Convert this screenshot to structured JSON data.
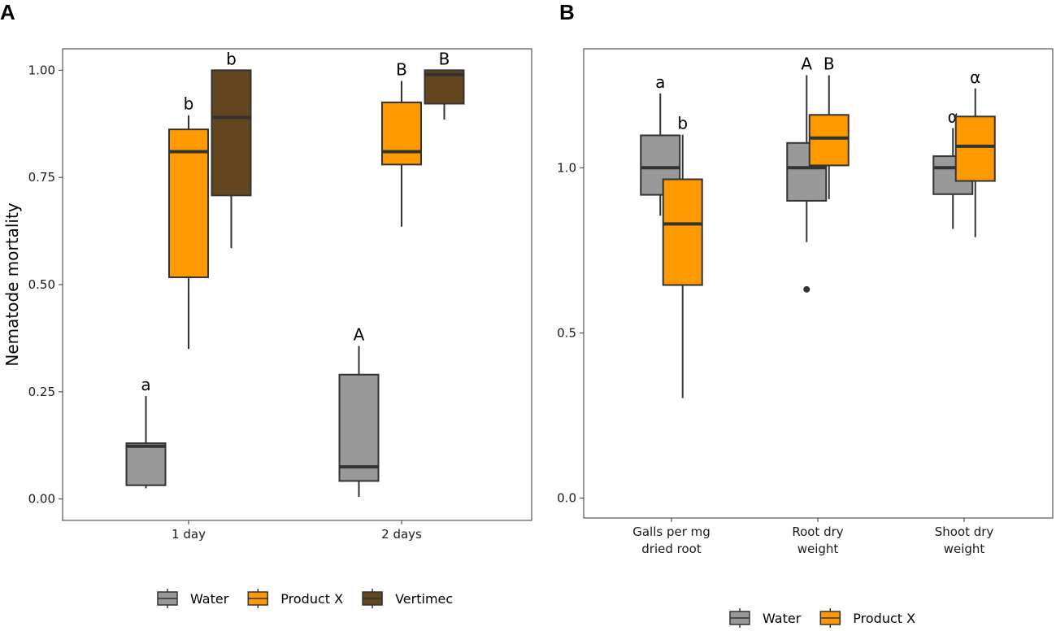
{
  "chart_data": [
    {
      "panel": "A",
      "type": "box",
      "ylabel": "Nematode mortality",
      "xlabel": "",
      "ylim": [
        -0.05,
        1.05
      ],
      "yticks": [
        0.0,
        0.25,
        0.5,
        0.75,
        1.0
      ],
      "ytick_labels": [
        "0.00",
        "0.25",
        "0.50",
        "0.75",
        "1.00"
      ],
      "categories": [
        "1 day",
        "2 days"
      ],
      "series": [
        {
          "name": "Water",
          "color": "#999999",
          "boxes": [
            {
              "min": 0.025,
              "q1": 0.032,
              "median": 0.123,
              "q3": 0.13,
              "max": 0.24,
              "letter": "a"
            },
            {
              "min": 0.005,
              "q1": 0.042,
              "median": 0.075,
              "q3": 0.29,
              "max": 0.357,
              "letter": "A"
            }
          ]
        },
        {
          "name": "Product X",
          "color": "#FF9900",
          "boxes": [
            {
              "min": 0.35,
              "q1": 0.517,
              "median": 0.81,
              "q3": 0.862,
              "max": 0.895,
              "letter": "b"
            },
            {
              "min": 0.635,
              "q1": 0.78,
              "median": 0.81,
              "q3": 0.925,
              "max": 0.975,
              "letter": "B"
            }
          ]
        },
        {
          "name": "Vertimec",
          "color": "#634520",
          "boxes": [
            {
              "min": 0.585,
              "q1": 0.708,
              "median": 0.89,
              "q3": 1.0,
              "max": 1.0,
              "letter": "b"
            },
            {
              "min": 0.885,
              "q1": 0.922,
              "median": 0.99,
              "q3": 1.0,
              "max": 1.0,
              "letter": "B"
            }
          ]
        }
      ]
    },
    {
      "panel": "B",
      "type": "box",
      "ylabel": "",
      "xlabel": "",
      "ylim": [
        -0.06,
        1.36
      ],
      "yticks": [
        0.0,
        0.5,
        1.0
      ],
      "ytick_labels": [
        "0.0",
        "0.5",
        "1.0"
      ],
      "categories": [
        [
          "Galls per mg",
          "dried root"
        ],
        [
          "Root dry",
          "weight"
        ],
        [
          "Shoot dry",
          "weight"
        ]
      ],
      "series": [
        {
          "name": "Water",
          "color": "#999999",
          "boxes": [
            {
              "min": 0.855,
              "q1": 0.918,
              "median": 1.0,
              "q3": 1.098,
              "max": 1.225,
              "letter": "a"
            },
            {
              "min": 0.775,
              "q1": 0.9,
              "median": 1.0,
              "q3": 1.075,
              "max": 1.28,
              "letter": "A",
              "outliers": [
                0.632
              ]
            },
            {
              "min": 0.815,
              "q1": 0.92,
              "median": 1.0,
              "q3": 1.035,
              "max": 1.12,
              "letter": "α"
            }
          ]
        },
        {
          "name": "Product X",
          "color": "#FF9900",
          "boxes": [
            {
              "min": 0.303,
              "q1": 0.645,
              "median": 0.83,
              "q3": 0.965,
              "max": 1.1,
              "letter": "b"
            },
            {
              "min": 0.905,
              "q1": 1.007,
              "median": 1.09,
              "q3": 1.16,
              "max": 1.28,
              "letter": "B"
            },
            {
              "min": 0.79,
              "q1": 0.96,
              "median": 1.065,
              "q3": 1.155,
              "max": 1.24,
              "letter": "α"
            }
          ]
        }
      ]
    }
  ]
}
